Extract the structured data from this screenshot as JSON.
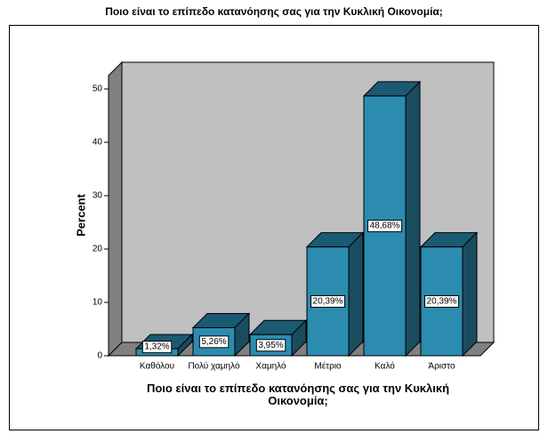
{
  "chart_data": {
    "type": "bar3d",
    "title": "Ποιο είναι το επίπεδο κατανόησης σας για την Κυκλική Οικονομία;",
    "x_label": "Ποιο είναι το επίπεδο κατανόησης σας για την Κυκλική Οικονομία;",
    "y_label": "Percent",
    "categories": [
      "Καθόλου",
      "Πολύ χαμηλό",
      "Χαμηλό",
      "Μέτριο",
      "Καλό",
      "Άριστο"
    ],
    "values": [
      1.32,
      5.26,
      3.95,
      20.39,
      48.68,
      20.39
    ],
    "value_labels": [
      "1,32%",
      "5,26%",
      "3,95%",
      "20,39%",
      "48,68%",
      "20,39%"
    ],
    "color": "#2b8cb0",
    "ylim": [
      0,
      55
    ],
    "yticks": [
      0,
      10,
      20,
      30,
      40,
      50
    ]
  }
}
